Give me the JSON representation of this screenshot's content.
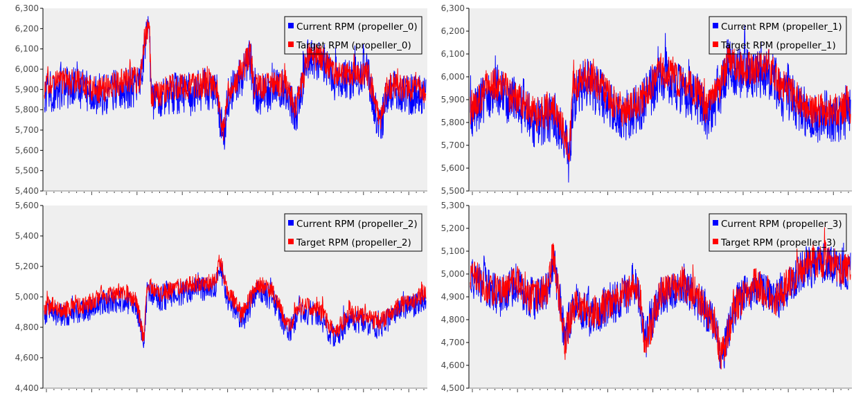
{
  "colors": {
    "current": "#0000ff",
    "target": "#ff0000",
    "plot_background": "#efefef",
    "page_background": "#ffffff"
  },
  "chart_data": [
    {
      "type": "line",
      "ylim": [
        5400,
        6300
      ],
      "yticks": [
        "5,400",
        "5,500",
        "5,600",
        "5,700",
        "5,800",
        "5,900",
        "6,000",
        "6,100",
        "6,200",
        "6,300"
      ],
      "legend_position": "top-right",
      "grid": false,
      "x_sample_count": 1200,
      "series": [
        {
          "name": "Current RPM (propeller_0)",
          "color": "#0000ff",
          "baseline": 5880,
          "noise": 140,
          "anchors": [
            [
              0,
              5880
            ],
            [
              0.08,
              5920
            ],
            [
              0.14,
              5860
            ],
            [
              0.19,
              5900
            ],
            [
              0.25,
              5920
            ],
            [
              0.265,
              6150
            ],
            [
              0.275,
              6200
            ],
            [
              0.28,
              5830
            ],
            [
              0.33,
              5880
            ],
            [
              0.45,
              5900
            ],
            [
              0.47,
              5650
            ],
            [
              0.48,
              5850
            ],
            [
              0.52,
              5980
            ],
            [
              0.54,
              6050
            ],
            [
              0.55,
              5880
            ],
            [
              0.63,
              5900
            ],
            [
              0.66,
              5780
            ],
            [
              0.69,
              6050
            ],
            [
              0.73,
              6030
            ],
            [
              0.76,
              5950
            ],
            [
              0.85,
              5950
            ],
            [
              0.88,
              5700
            ],
            [
              0.9,
              5900
            ],
            [
              1.0,
              5860
            ]
          ]
        },
        {
          "name": "Target RPM (propeller_0)",
          "color": "#ff0000",
          "baseline": 5910,
          "noise": 90,
          "anchors": [
            [
              0,
              5920
            ],
            [
              0.08,
              5940
            ],
            [
              0.14,
              5890
            ],
            [
              0.19,
              5930
            ],
            [
              0.25,
              5950
            ],
            [
              0.265,
              6180
            ],
            [
              0.275,
              6230
            ],
            [
              0.28,
              5860
            ],
            [
              0.33,
              5910
            ],
            [
              0.45,
              5920
            ],
            [
              0.47,
              5680
            ],
            [
              0.48,
              5880
            ],
            [
              0.52,
              6000
            ],
            [
              0.54,
              6080
            ],
            [
              0.55,
              5910
            ],
            [
              0.63,
              5930
            ],
            [
              0.66,
              5810
            ],
            [
              0.69,
              6070
            ],
            [
              0.73,
              6050
            ],
            [
              0.76,
              5970
            ],
            [
              0.85,
              5970
            ],
            [
              0.88,
              5740
            ],
            [
              0.9,
              5920
            ],
            [
              1.0,
              5890
            ]
          ]
        }
      ]
    },
    {
      "type": "line",
      "ylim": [
        5500,
        6300
      ],
      "yticks": [
        "5,500",
        "5,600",
        "5,700",
        "5,800",
        "5,900",
        "6,000",
        "6,100",
        "6,200",
        "6,300"
      ],
      "legend_position": "top-right",
      "grid": false,
      "x_sample_count": 1200,
      "series": [
        {
          "name": "Current RPM (propeller_1)",
          "color": "#0000ff",
          "baseline": 5850,
          "noise": 150,
          "anchors": [
            [
              0,
              5830
            ],
            [
              0.06,
              5950
            ],
            [
              0.12,
              5880
            ],
            [
              0.17,
              5800
            ],
            [
              0.22,
              5830
            ],
            [
              0.25,
              5720
            ],
            [
              0.26,
              5620
            ],
            [
              0.27,
              5900
            ],
            [
              0.3,
              5980
            ],
            [
              0.34,
              5930
            ],
            [
              0.4,
              5820
            ],
            [
              0.45,
              5870
            ],
            [
              0.5,
              6010
            ],
            [
              0.55,
              5950
            ],
            [
              0.6,
              5900
            ],
            [
              0.62,
              5820
            ],
            [
              0.65,
              5900
            ],
            [
              0.68,
              6050
            ],
            [
              0.72,
              6000
            ],
            [
              0.78,
              6020
            ],
            [
              0.84,
              5900
            ],
            [
              0.9,
              5820
            ],
            [
              1.0,
              5830
            ]
          ]
        },
        {
          "name": "Target RPM (propeller_1)",
          "color": "#ff0000",
          "baseline": 5880,
          "noise": 100,
          "anchors": [
            [
              0,
              5860
            ],
            [
              0.06,
              5980
            ],
            [
              0.12,
              5910
            ],
            [
              0.17,
              5830
            ],
            [
              0.22,
              5860
            ],
            [
              0.25,
              5750
            ],
            [
              0.26,
              5650
            ],
            [
              0.27,
              5930
            ],
            [
              0.3,
              6010
            ],
            [
              0.34,
              5960
            ],
            [
              0.4,
              5850
            ],
            [
              0.45,
              5900
            ],
            [
              0.5,
              6040
            ],
            [
              0.55,
              5980
            ],
            [
              0.6,
              5930
            ],
            [
              0.62,
              5850
            ],
            [
              0.65,
              5930
            ],
            [
              0.68,
              6080
            ],
            [
              0.72,
              6030
            ],
            [
              0.78,
              6050
            ],
            [
              0.84,
              5930
            ],
            [
              0.9,
              5850
            ],
            [
              1.0,
              5860
            ]
          ]
        }
      ]
    },
    {
      "type": "line",
      "ylim": [
        4400,
        5600
      ],
      "yticks": [
        "4,400",
        "4,600",
        "4,800",
        "5,000",
        "5,200",
        "5,400",
        "5,600"
      ],
      "legend_position": "top-right",
      "grid": false,
      "x_sample_count": 1200,
      "series": [
        {
          "name": "Current RPM (propeller_2)",
          "color": "#0000ff",
          "baseline": 4950,
          "noise": 110,
          "anchors": [
            [
              0,
              4900
            ],
            [
              0.05,
              4880
            ],
            [
              0.1,
              4900
            ],
            [
              0.15,
              4960
            ],
            [
              0.2,
              4980
            ],
            [
              0.24,
              4950
            ],
            [
              0.26,
              4680
            ],
            [
              0.27,
              5050
            ],
            [
              0.3,
              4980
            ],
            [
              0.38,
              5040
            ],
            [
              0.45,
              5060
            ],
            [
              0.46,
              5220
            ],
            [
              0.48,
              4990
            ],
            [
              0.52,
              4850
            ],
            [
              0.56,
              5050
            ],
            [
              0.6,
              4980
            ],
            [
              0.64,
              4760
            ],
            [
              0.67,
              4900
            ],
            [
              0.72,
              4880
            ],
            [
              0.76,
              4720
            ],
            [
              0.8,
              4860
            ],
            [
              0.88,
              4800
            ],
            [
              0.93,
              4900
            ],
            [
              1.0,
              4980
            ]
          ]
        },
        {
          "name": "Target RPM (propeller_2)",
          "color": "#ff0000",
          "baseline": 4990,
          "noise": 80,
          "anchors": [
            [
              0,
              4940
            ],
            [
              0.05,
              4920
            ],
            [
              0.1,
              4940
            ],
            [
              0.15,
              5000
            ],
            [
              0.2,
              5020
            ],
            [
              0.24,
              4990
            ],
            [
              0.26,
              4720
            ],
            [
              0.27,
              5090
            ],
            [
              0.3,
              5020
            ],
            [
              0.38,
              5080
            ],
            [
              0.45,
              5100
            ],
            [
              0.46,
              5260
            ],
            [
              0.48,
              5030
            ],
            [
              0.52,
              4890
            ],
            [
              0.56,
              5090
            ],
            [
              0.6,
              5020
            ],
            [
              0.64,
              4800
            ],
            [
              0.67,
              4940
            ],
            [
              0.72,
              4920
            ],
            [
              0.76,
              4760
            ],
            [
              0.8,
              4900
            ],
            [
              0.88,
              4840
            ],
            [
              0.93,
              4940
            ],
            [
              1.0,
              5020
            ]
          ]
        }
      ]
    },
    {
      "type": "line",
      "ylim": [
        4500,
        5300
      ],
      "yticks": [
        "4,500",
        "4,600",
        "4,700",
        "4,800",
        "4,900",
        "5,000",
        "5,100",
        "5,200",
        "5,300"
      ],
      "legend_position": "top-right",
      "grid": false,
      "x_sample_count": 1200,
      "series": [
        {
          "name": "Current RPM (propeller_3)",
          "color": "#0000ff",
          "baseline": 4920,
          "noise": 120,
          "anchors": [
            [
              0,
              4990
            ],
            [
              0.04,
              4940
            ],
            [
              0.08,
              4900
            ],
            [
              0.12,
              4960
            ],
            [
              0.16,
              4880
            ],
            [
              0.2,
              4920
            ],
            [
              0.22,
              5050
            ],
            [
              0.25,
              4700
            ],
            [
              0.27,
              4860
            ],
            [
              0.32,
              4820
            ],
            [
              0.36,
              4850
            ],
            [
              0.4,
              4900
            ],
            [
              0.44,
              4950
            ],
            [
              0.46,
              4700
            ],
            [
              0.5,
              4900
            ],
            [
              0.56,
              4950
            ],
            [
              0.6,
              4880
            ],
            [
              0.64,
              4800
            ],
            [
              0.66,
              4650
            ],
            [
              0.7,
              4860
            ],
            [
              0.75,
              4950
            ],
            [
              0.8,
              4870
            ],
            [
              0.84,
              4950
            ],
            [
              0.88,
              5030
            ],
            [
              0.93,
              5050
            ],
            [
              1.0,
              5000
            ]
          ]
        },
        {
          "name": "Target RPM (propeller_3)",
          "color": "#ff0000",
          "baseline": 4930,
          "noise": 100,
          "anchors": [
            [
              0,
              5000
            ],
            [
              0.04,
              4950
            ],
            [
              0.08,
              4910
            ],
            [
              0.12,
              4970
            ],
            [
              0.16,
              4890
            ],
            [
              0.2,
              4930
            ],
            [
              0.22,
              5070
            ],
            [
              0.25,
              4690
            ],
            [
              0.27,
              4870
            ],
            [
              0.32,
              4830
            ],
            [
              0.36,
              4860
            ],
            [
              0.4,
              4910
            ],
            [
              0.44,
              4960
            ],
            [
              0.46,
              4690
            ],
            [
              0.5,
              4910
            ],
            [
              0.56,
              4960
            ],
            [
              0.6,
              4890
            ],
            [
              0.64,
              4810
            ],
            [
              0.66,
              4640
            ],
            [
              0.7,
              4870
            ],
            [
              0.75,
              4960
            ],
            [
              0.8,
              4880
            ],
            [
              0.84,
              4960
            ],
            [
              0.88,
              5040
            ],
            [
              0.93,
              5060
            ],
            [
              1.0,
              5010
            ]
          ]
        }
      ]
    }
  ]
}
